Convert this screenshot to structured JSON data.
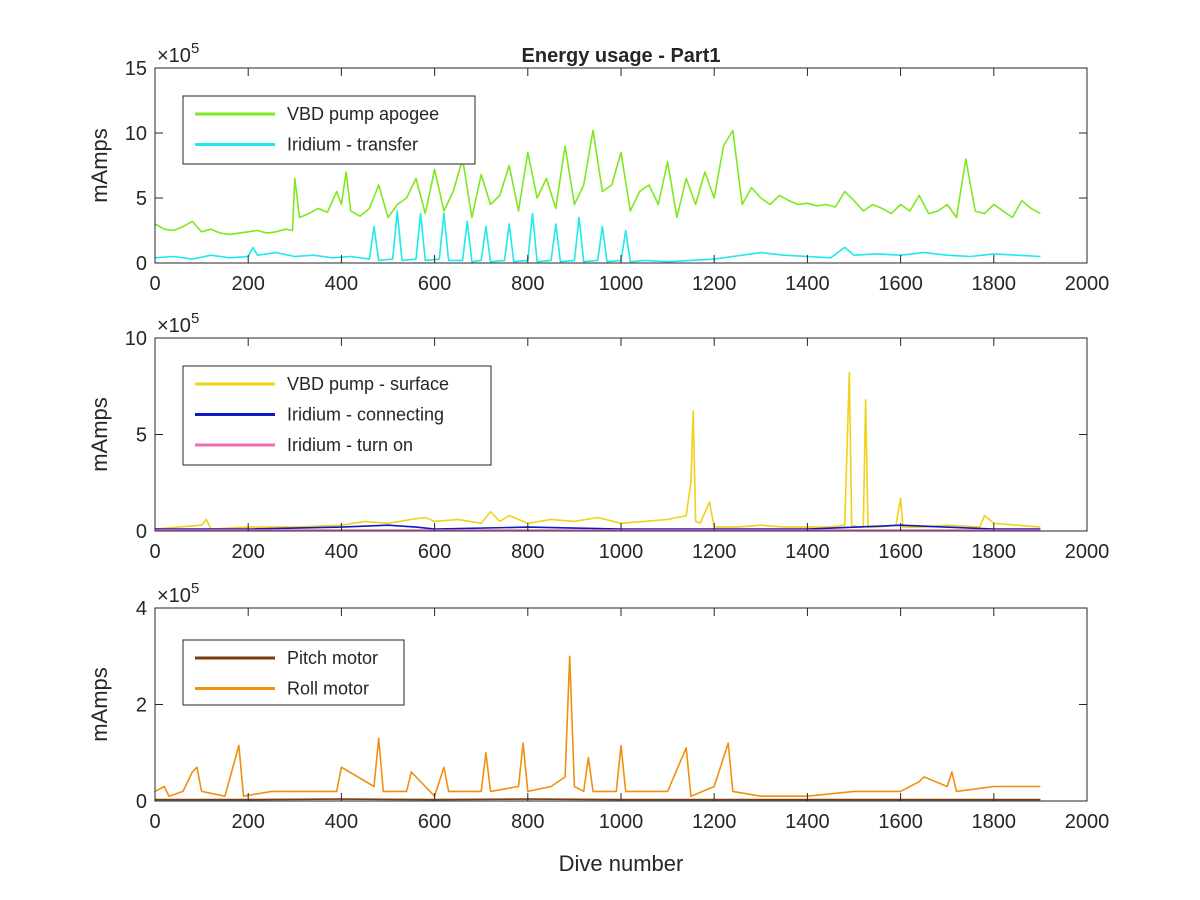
{
  "chart_data": [
    {
      "type": "line",
      "title": "Energy usage - Part1",
      "xlabel": "",
      "ylabel": "mAmps",
      "xlim": [
        0,
        2000
      ],
      "ylim": [
        0,
        15
      ],
      "y_multiplier": "×10^5",
      "y_multiplier_base": "×10",
      "y_multiplier_exp": "5",
      "xticks": [
        "0",
        "200",
        "400",
        "600",
        "800",
        "1000",
        "1200",
        "1400",
        "1600",
        "1800",
        "2000"
      ],
      "yticks": [
        "0",
        "5",
        "10",
        "15"
      ],
      "legend_position": "top-left",
      "series": [
        {
          "name": "VBD pump apogee",
          "color": "#7ee81f",
          "x": [
            0,
            20,
            40,
            60,
            80,
            100,
            120,
            140,
            160,
            180,
            200,
            220,
            240,
            260,
            280,
            295,
            300,
            310,
            330,
            350,
            370,
            390,
            400,
            410,
            420,
            440,
            460,
            480,
            500,
            520,
            540,
            560,
            580,
            600,
            620,
            640,
            660,
            680,
            700,
            720,
            740,
            760,
            780,
            800,
            820,
            840,
            860,
            880,
            900,
            920,
            940,
            960,
            980,
            1000,
            1020,
            1040,
            1060,
            1080,
            1100,
            1120,
            1140,
            1160,
            1180,
            1200,
            1220,
            1240,
            1260,
            1280,
            1300,
            1320,
            1340,
            1360,
            1380,
            1400,
            1420,
            1440,
            1460,
            1480,
            1500,
            1520,
            1540,
            1560,
            1580,
            1600,
            1620,
            1640,
            1660,
            1680,
            1700,
            1720,
            1740,
            1760,
            1780,
            1800,
            1820,
            1840,
            1860,
            1880,
            1900
          ],
          "y": [
            3.0,
            2.6,
            2.5,
            2.8,
            3.2,
            2.4,
            2.6,
            2.3,
            2.2,
            2.3,
            2.4,
            2.5,
            2.3,
            2.4,
            2.6,
            2.5,
            6.5,
            3.5,
            3.8,
            4.2,
            3.9,
            5.5,
            4.5,
            7.0,
            4.0,
            3.6,
            4.2,
            6.0,
            3.5,
            4.5,
            5.0,
            6.5,
            3.8,
            7.2,
            4.0,
            5.5,
            8.0,
            3.5,
            6.8,
            4.5,
            5.2,
            7.5,
            4.0,
            8.5,
            5.0,
            6.5,
            4.2,
            9.0,
            4.5,
            6.0,
            10.2,
            5.5,
            6.0,
            8.5,
            4.0,
            5.5,
            6.0,
            4.5,
            7.8,
            3.5,
            6.5,
            4.5,
            7.0,
            5.0,
            9.0,
            10.2,
            4.5,
            5.8,
            5.0,
            4.5,
            5.2,
            4.8,
            4.5,
            4.6,
            4.4,
            4.5,
            4.3,
            5.5,
            4.8,
            4.0,
            4.5,
            4.2,
            3.8,
            4.5,
            4.0,
            5.2,
            3.8,
            4.0,
            4.5,
            3.5,
            8.0,
            4.0,
            3.8,
            4.5,
            4.0,
            3.5,
            4.8,
            4.2,
            3.8
          ]
        },
        {
          "name": "Iridium - transfer",
          "color": "#1fe8ee",
          "x": [
            0,
            40,
            80,
            120,
            160,
            200,
            210,
            220,
            260,
            300,
            340,
            380,
            420,
            460,
            470,
            480,
            510,
            520,
            530,
            560,
            570,
            580,
            610,
            620,
            630,
            660,
            670,
            680,
            700,
            710,
            720,
            750,
            760,
            770,
            800,
            810,
            820,
            850,
            860,
            870,
            900,
            910,
            920,
            950,
            960,
            970,
            1000,
            1010,
            1020,
            1050,
            1100,
            1150,
            1200,
            1240,
            1300,
            1350,
            1400,
            1450,
            1480,
            1500,
            1550,
            1600,
            1650,
            1700,
            1750,
            1800,
            1850,
            1900
          ],
          "y": [
            0.4,
            0.5,
            0.3,
            0.6,
            0.4,
            0.5,
            1.2,
            0.6,
            0.8,
            0.5,
            0.6,
            0.4,
            0.5,
            0.3,
            2.8,
            0.2,
            0.3,
            4.0,
            0.2,
            0.3,
            3.8,
            0.2,
            0.3,
            3.8,
            0.2,
            0.2,
            3.2,
            0.1,
            0.2,
            2.8,
            0.1,
            0.2,
            3.0,
            0.1,
            0.2,
            3.8,
            0.1,
            0.2,
            3.0,
            0.1,
            0.2,
            3.5,
            0.1,
            0.2,
            2.8,
            0.1,
            0.2,
            2.5,
            0.1,
            0.2,
            0.1,
            0.2,
            0.3,
            0.5,
            0.8,
            0.6,
            0.5,
            0.4,
            1.2,
            0.6,
            0.7,
            0.6,
            0.8,
            0.6,
            0.5,
            0.7,
            0.6,
            0.5
          ]
        }
      ]
    },
    {
      "type": "line",
      "title": "",
      "xlabel": "",
      "ylabel": "mAmps",
      "xlim": [
        0,
        2000
      ],
      "ylim": [
        0,
        10
      ],
      "y_multiplier": "×10^5",
      "y_multiplier_base": "×10",
      "y_multiplier_exp": "5",
      "xticks": [
        "0",
        "200",
        "400",
        "600",
        "800",
        "1000",
        "1200",
        "1400",
        "1600",
        "1800",
        "2000"
      ],
      "yticks": [
        "0",
        "5",
        "10"
      ],
      "legend_position": "top-left",
      "series": [
        {
          "name": "VBD pump - surface",
          "color": "#f0d21a",
          "x": [
            0,
            50,
            100,
            110,
            120,
            200,
            300,
            400,
            450,
            500,
            550,
            580,
            600,
            650,
            700,
            720,
            740,
            760,
            800,
            850,
            900,
            950,
            1000,
            1050,
            1100,
            1140,
            1150,
            1155,
            1160,
            1170,
            1190,
            1200,
            1250,
            1300,
            1350,
            1400,
            1450,
            1480,
            1490,
            1495,
            1510,
            1520,
            1525,
            1530,
            1550,
            1590,
            1600,
            1605,
            1650,
            1700,
            1770,
            1780,
            1800,
            1850,
            1900
          ],
          "y": [
            0.1,
            0.2,
            0.3,
            0.6,
            0.1,
            0.2,
            0.2,
            0.3,
            0.5,
            0.4,
            0.6,
            0.7,
            0.5,
            0.6,
            0.4,
            1.0,
            0.5,
            0.8,
            0.4,
            0.6,
            0.5,
            0.7,
            0.4,
            0.5,
            0.6,
            0.8,
            2.5,
            6.2,
            0.5,
            0.4,
            1.5,
            0.2,
            0.2,
            0.3,
            0.2,
            0.2,
            0.2,
            0.3,
            8.2,
            0.3,
            0.2,
            0.2,
            6.8,
            0.2,
            0.2,
            0.3,
            1.7,
            0.2,
            0.2,
            0.3,
            0.2,
            0.8,
            0.4,
            0.3,
            0.2
          ]
        },
        {
          "name": "Iridium - connecting",
          "color": "#0a1ac8",
          "x": [
            0,
            100,
            200,
            400,
            500,
            560,
            600,
            800,
            1000,
            1200,
            1400,
            1600,
            1800,
            1900
          ],
          "y": [
            0.1,
            0.1,
            0.1,
            0.2,
            0.3,
            0.2,
            0.1,
            0.2,
            0.1,
            0.1,
            0.1,
            0.3,
            0.1,
            0.1
          ]
        },
        {
          "name": "Iridium - turn on",
          "color": "#f06ab4",
          "x": [
            0,
            200,
            400,
            600,
            800,
            1000,
            1200,
            1400,
            1600,
            1800,
            1900
          ],
          "y": [
            0.05,
            0.05,
            0.05,
            0.05,
            0.05,
            0.05,
            0.05,
            0.05,
            0.05,
            0.05,
            0.05
          ]
        }
      ]
    },
    {
      "type": "line",
      "title": "",
      "xlabel": "Dive number",
      "ylabel": "mAmps",
      "xlim": [
        0,
        2000
      ],
      "ylim": [
        0,
        4
      ],
      "y_multiplier": "×10^5",
      "y_multiplier_base": "×10",
      "y_multiplier_exp": "5",
      "xticks": [
        "0",
        "200",
        "400",
        "600",
        "800",
        "1000",
        "1200",
        "1400",
        "1600",
        "1800",
        "2000"
      ],
      "yticks": [
        "0",
        "2",
        "4"
      ],
      "legend_position": "top-left",
      "series": [
        {
          "name": "Pitch motor",
          "color": "#7a3c10",
          "x": [
            0,
            200,
            400,
            600,
            800,
            1000,
            1200,
            1400,
            1600,
            1800,
            1900
          ],
          "y": [
            0.03,
            0.03,
            0.04,
            0.03,
            0.04,
            0.03,
            0.03,
            0.03,
            0.03,
            0.03,
            0.03
          ]
        },
        {
          "name": "Roll motor",
          "color": "#f0900f",
          "x": [
            0,
            20,
            30,
            60,
            80,
            90,
            100,
            150,
            180,
            190,
            250,
            300,
            390,
            400,
            470,
            480,
            490,
            540,
            550,
            600,
            620,
            630,
            700,
            710,
            720,
            780,
            790,
            800,
            850,
            880,
            890,
            900,
            920,
            930,
            940,
            990,
            1000,
            1010,
            1100,
            1140,
            1150,
            1200,
            1230,
            1240,
            1300,
            1400,
            1500,
            1600,
            1640,
            1650,
            1700,
            1710,
            1720,
            1800,
            1850,
            1900
          ],
          "y": [
            0.2,
            0.3,
            0.1,
            0.2,
            0.6,
            0.7,
            0.2,
            0.1,
            1.15,
            0.1,
            0.2,
            0.2,
            0.2,
            0.7,
            0.3,
            1.3,
            0.2,
            0.2,
            0.6,
            0.1,
            0.7,
            0.2,
            0.2,
            1.0,
            0.2,
            0.3,
            1.2,
            0.2,
            0.3,
            0.5,
            3.0,
            0.3,
            0.2,
            0.9,
            0.2,
            0.2,
            1.15,
            0.2,
            0.2,
            1.1,
            0.1,
            0.3,
            1.2,
            0.2,
            0.1,
            0.1,
            0.2,
            0.2,
            0.4,
            0.5,
            0.3,
            0.6,
            0.2,
            0.3,
            0.3,
            0.3
          ]
        }
      ]
    }
  ]
}
